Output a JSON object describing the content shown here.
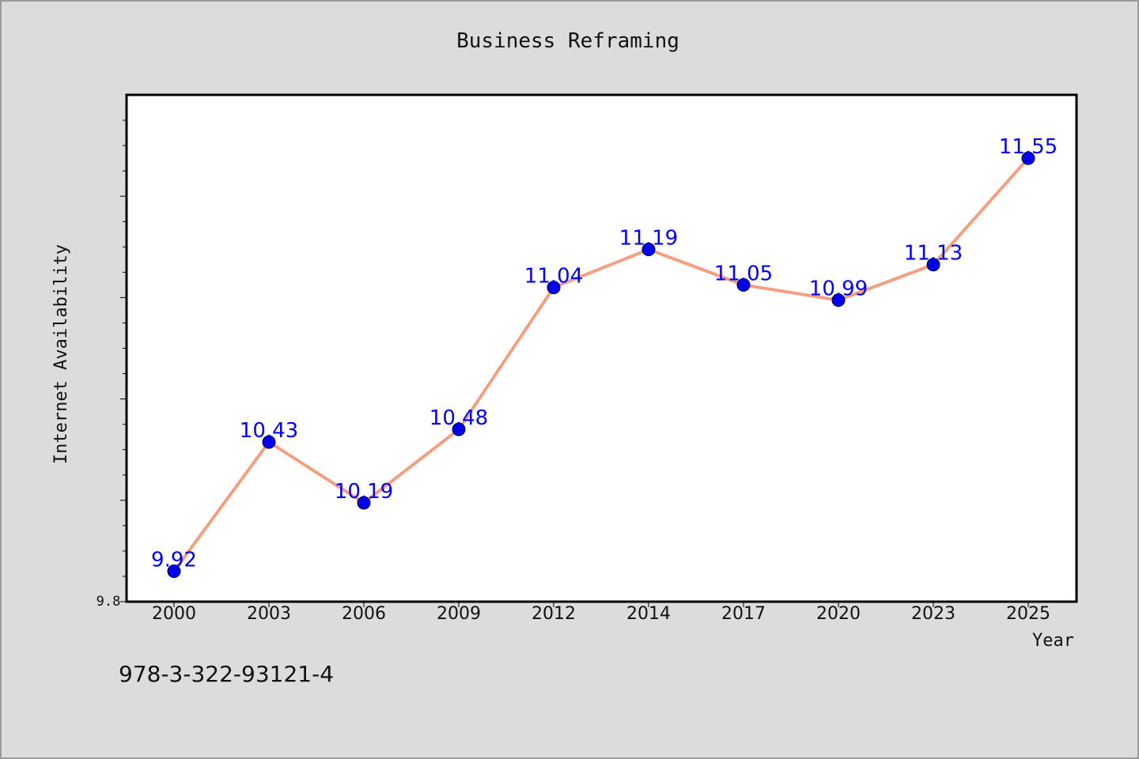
{
  "chart_data": {
    "type": "line",
    "title": "Business Reframing",
    "xlabel": "Year",
    "ylabel": "Internet Availability",
    "categories": [
      "2000",
      "2003",
      "2006",
      "2009",
      "2012",
      "2014",
      "2017",
      "2020",
      "2023",
      "2025"
    ],
    "series": [
      {
        "values": [
          9.92,
          10.43,
          10.19,
          10.48,
          11.04,
          11.19,
          11.05,
          10.99,
          11.13,
          11.55
        ]
      }
    ],
    "ylim": [
      9.8,
      11.8
    ],
    "y_tick_labels": [
      "9.8"
    ],
    "grid": false,
    "data_labels": true,
    "colors": {
      "line": "#f4a080",
      "marker": "#0000ee",
      "data_label": "#0000ff",
      "background": "#dcdcdc",
      "plot_background": "#ffffff"
    }
  },
  "footer": {
    "text": "978-3-322-93121-4"
  }
}
